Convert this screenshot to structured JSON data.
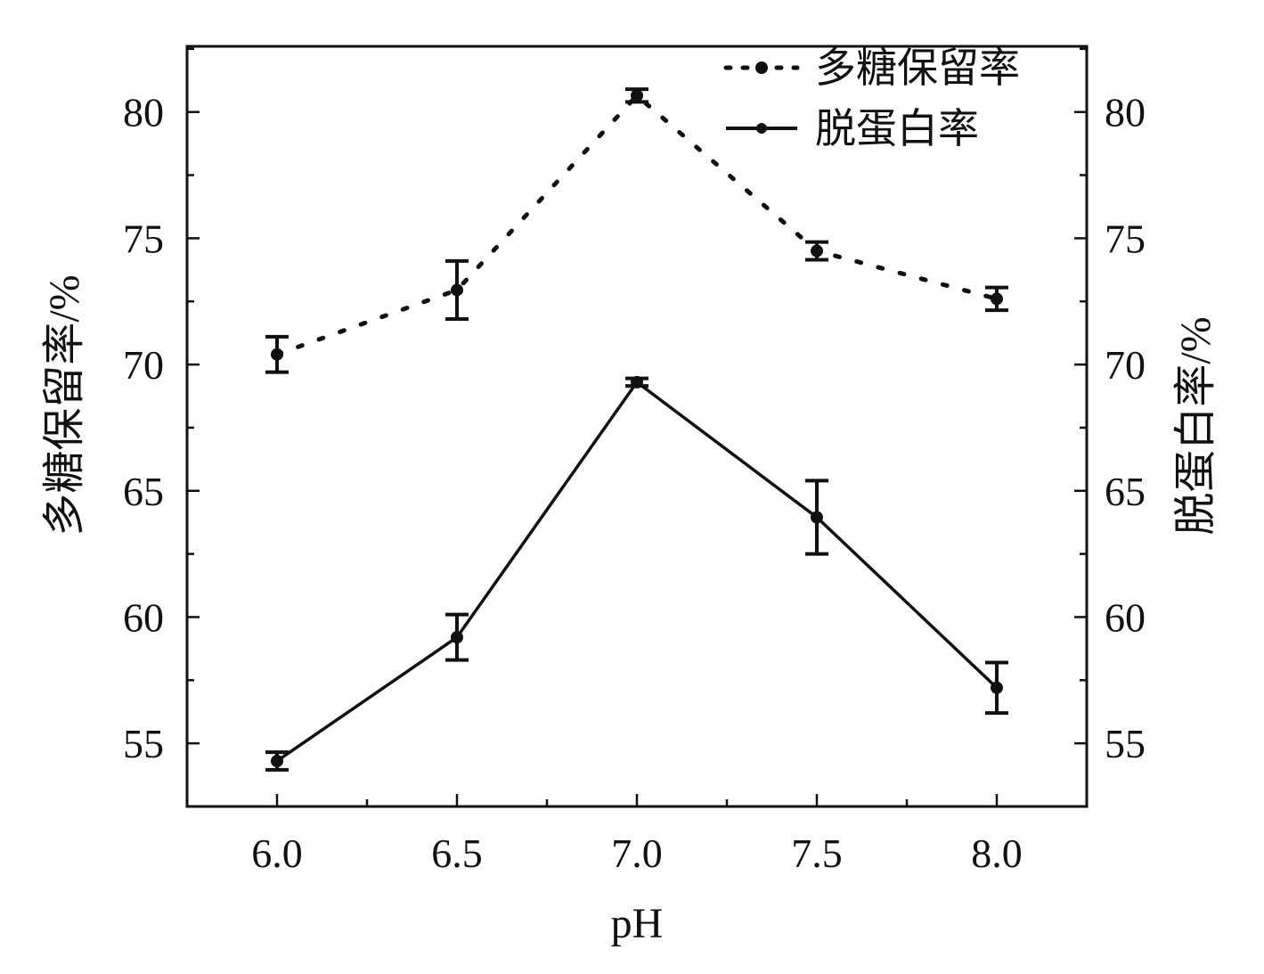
{
  "chart_data": {
    "type": "line",
    "x": [
      6.0,
      6.5,
      7.0,
      7.5,
      8.0
    ],
    "xlabel": "pH",
    "xlim": [
      5.75,
      8.25
    ],
    "xticks": [
      "6.0",
      "6.5",
      "7.0",
      "7.5",
      "8.0"
    ],
    "ylabel_left": "多糖保留率/%",
    "ylabel_right": "脱蛋白率/%",
    "ylim": [
      52.5,
      82.6
    ],
    "yticks": [
      "55",
      "60",
      "65",
      "70",
      "75",
      "80"
    ],
    "series": [
      {
        "name": "多糖保留率",
        "style": "dotted",
        "y": [
          70.4,
          72.95,
          80.65,
          74.5,
          72.6
        ],
        "err": [
          0.7,
          1.15,
          0.25,
          0.35,
          0.45
        ]
      },
      {
        "name": "脱蛋白率",
        "style": "solid",
        "y": [
          54.3,
          59.2,
          69.3,
          63.95,
          57.2
        ],
        "err": [
          0.35,
          0.9,
          0.15,
          1.45,
          1.0
        ]
      }
    ],
    "legend_position": "top-right",
    "color": "#111111"
  }
}
